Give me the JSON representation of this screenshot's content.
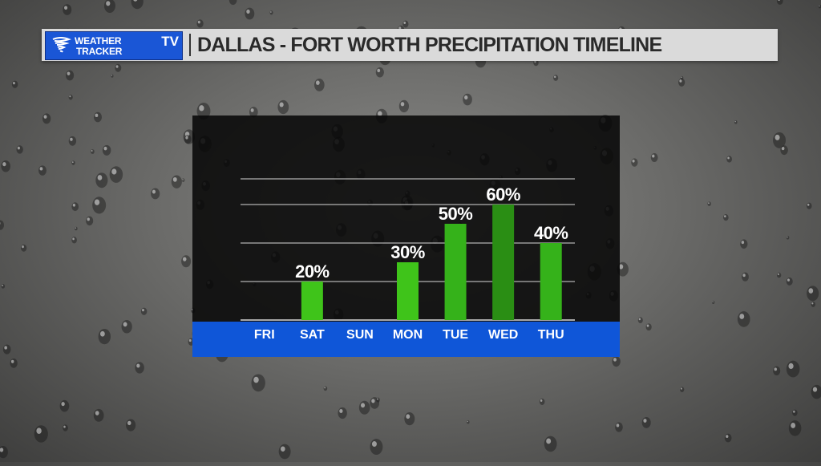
{
  "header": {
    "logo_line1": "WEATHER",
    "logo_line2": "TRACKER",
    "logo_tv": "TV",
    "title": "DALLAS - FORT WORTH PRECIPITATION TIMELINE"
  },
  "icons": [
    "tornado-swirl-icon"
  ],
  "colors": {
    "bar_light": "#3fc41a",
    "bar_mid": "#35b21a",
    "bar_dark": "#2a8e14",
    "axis_band": "#0f56d8",
    "header_bg": "#dadada"
  },
  "chart_data": {
    "type": "bar",
    "categories": [
      "FRI",
      "SAT",
      "SUN",
      "MON",
      "TUE",
      "WED",
      "THU"
    ],
    "values": [
      0,
      20,
      0,
      30,
      50,
      60,
      40
    ],
    "data_labels": [
      "",
      "20%",
      "",
      "30%",
      "50%",
      "60%",
      "40%"
    ],
    "ylim": [
      0,
      80
    ],
    "grid": true,
    "title": "",
    "xlabel": "",
    "ylabel": ""
  }
}
